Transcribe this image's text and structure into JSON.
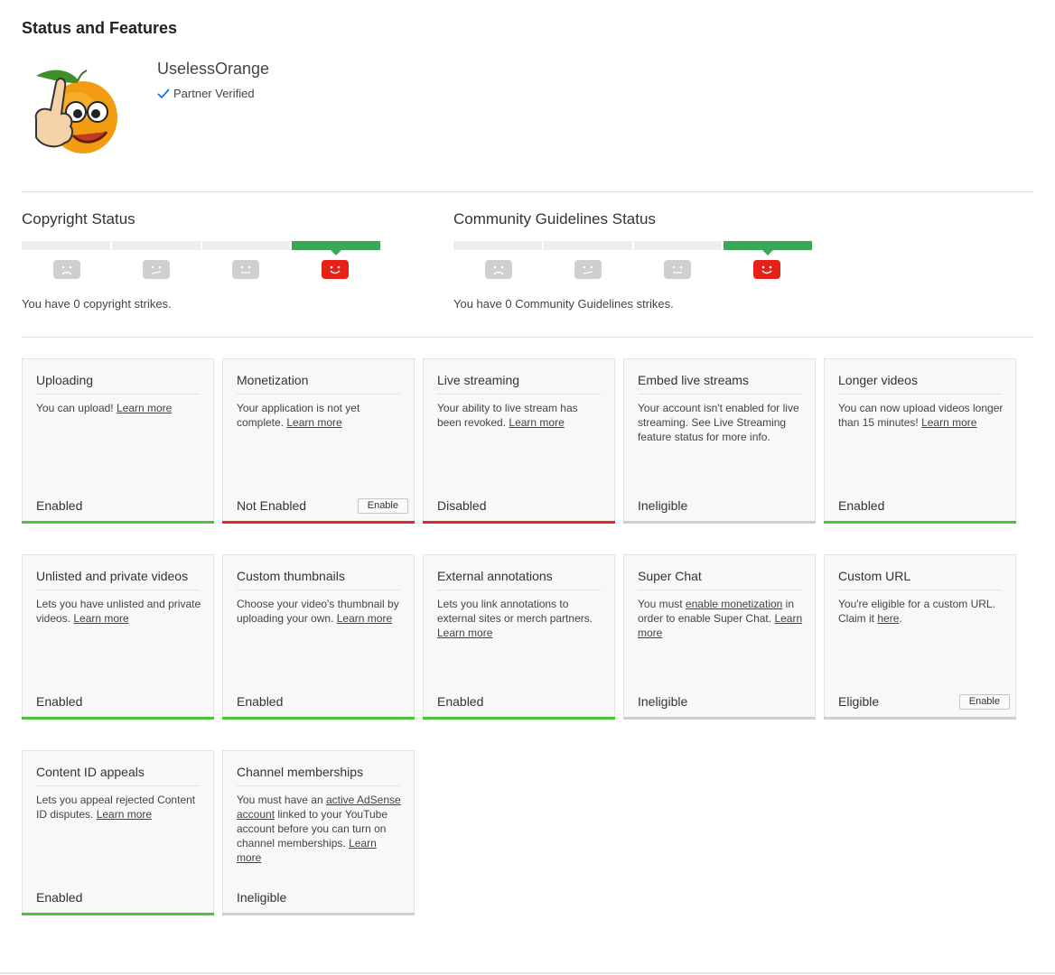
{
  "page": {
    "title": "Status and Features"
  },
  "channel": {
    "name": "UselessOrange",
    "badge": "Partner Verified"
  },
  "copyright": {
    "title": "Copyright Status",
    "text": "You have 0 copyright strikes."
  },
  "community": {
    "title": "Community Guidelines Status",
    "text": "You have 0 Community Guidelines strikes."
  },
  "colors": {
    "green": "#4bc43a",
    "red": "#e0282a",
    "gray": "#cfcfcf",
    "active_segment": "#3aa757",
    "face_red": "#e62117"
  },
  "features": [
    {
      "title": "Uploading",
      "desc_pre": "You can upload! ",
      "link": "Learn more",
      "desc_post": "",
      "status": "Enabled",
      "color": "green"
    },
    {
      "title": "Monetization",
      "desc_pre": "Your application is not yet complete. ",
      "link": "Learn more",
      "desc_post": "",
      "status": "Not Enabled",
      "color": "red",
      "button": "Enable"
    },
    {
      "title": "Live streaming",
      "desc_pre": "Your ability to live stream has been revoked. ",
      "link": "Learn more",
      "desc_post": "",
      "status": "Disabled",
      "color": "red"
    },
    {
      "title": "Embed live streams",
      "desc_pre": "Your account isn't enabled for live streaming. See Live Streaming feature status for more info.",
      "link": "",
      "desc_post": "",
      "status": "Ineligible",
      "color": "gray"
    },
    {
      "title": "Longer videos",
      "desc_pre": "You can now upload videos longer than 15 minutes! ",
      "link": "Learn more",
      "desc_post": "",
      "status": "Enabled",
      "color": "green"
    },
    {
      "title": "Unlisted and private videos",
      "desc_pre": "Lets you have unlisted and private videos. ",
      "link": "Learn more",
      "desc_post": "",
      "status": "Enabled",
      "color": "green"
    },
    {
      "title": "Custom thumbnails",
      "desc_pre": "Choose your video's thumbnail by uploading your own. ",
      "link": "Learn more",
      "desc_post": "",
      "status": "Enabled",
      "color": "green"
    },
    {
      "title": "External annotations",
      "desc_pre": "Lets you link annotations to external sites or merch partners. ",
      "link": "Learn more",
      "desc_post": "",
      "status": "Enabled",
      "color": "green"
    },
    {
      "title": "Super Chat",
      "desc_pre": "You must ",
      "link": "enable monetization",
      "desc_post": " in order to enable Super Chat. ",
      "link2": "Learn more",
      "status": "Ineligible",
      "color": "gray"
    },
    {
      "title": "Custom URL",
      "desc_pre": "You're eligible for a custom URL. Claim it ",
      "link": "here",
      "desc_post": ".",
      "status": "Eligible",
      "color": "gray",
      "button": "Enable"
    },
    {
      "title": "Content ID appeals",
      "desc_pre": "Lets you appeal rejected Content ID disputes. ",
      "link": "Learn more",
      "desc_post": "",
      "status": "Enabled",
      "color": "green"
    },
    {
      "title": "Channel memberships",
      "desc_pre": "You must have an ",
      "link": "active AdSense account",
      "desc_post": " linked to your YouTube account before you can turn on channel memberships. ",
      "link2": "Learn more",
      "status": "Ineligible",
      "color": "gray"
    }
  ]
}
